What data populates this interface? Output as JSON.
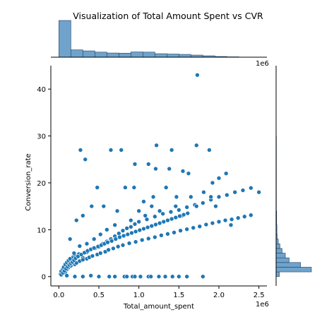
{
  "chart_data": {
    "type": "scatter",
    "title": "Visualization of Total Amount Spent vs CVR",
    "xlabel": "Total_amount_spent",
    "ylabel": "Conversion_rate",
    "x_scale_label": "1e6",
    "marginal_x_scale_label": "1e6",
    "xlim": [
      -0.1,
      2.6
    ],
    "ylim": [
      -2,
      45
    ],
    "x_ticks": [
      "0.0",
      "0.5",
      "1.0",
      "1.5",
      "2.0",
      "2.5"
    ],
    "y_ticks": [
      "0",
      "10",
      "20",
      "30",
      "40"
    ],
    "point_color": "#1f77b4",
    "hist_color": "#6fa3cb",
    "marginal_x_hist": {
      "bin_edges": [
        0.0,
        0.15,
        0.3,
        0.45,
        0.6,
        0.75,
        0.9,
        1.05,
        1.2,
        1.35,
        1.5,
        1.65,
        1.8,
        1.95,
        2.1,
        2.25
      ],
      "counts": [
        210,
        42,
        36,
        29,
        24,
        23,
        30,
        29,
        20,
        18,
        16,
        12,
        8,
        4,
        2
      ]
    },
    "marginal_y_hist": {
      "bin_edges": [
        0,
        1,
        2,
        3,
        4,
        5,
        6,
        7,
        8,
        9,
        10,
        11,
        12,
        13,
        14,
        15,
        16,
        17,
        18,
        19,
        20,
        21,
        22,
        23,
        24,
        25,
        26,
        27,
        28,
        29,
        30
      ],
      "counts": [
        12,
        130,
        90,
        48,
        34,
        22,
        14,
        8,
        4,
        3,
        3,
        2,
        2,
        2,
        1,
        1,
        1,
        1,
        1,
        1,
        1,
        1,
        1,
        1,
        1,
        1,
        1,
        1,
        1,
        1
      ]
    },
    "points": [
      [
        0.02,
        0.5
      ],
      [
        0.03,
        1.1
      ],
      [
        0.05,
        1.6
      ],
      [
        0.06,
        2.0
      ],
      [
        0.08,
        2.6
      ],
      [
        0.1,
        3.0
      ],
      [
        0.12,
        3.4
      ],
      [
        0.14,
        3.8
      ],
      [
        0.18,
        4.2
      ],
      [
        0.2,
        4.5
      ],
      [
        0.25,
        4.8
      ],
      [
        0.3,
        4.0
      ],
      [
        0.35,
        5.2
      ],
      [
        0.4,
        5.7
      ],
      [
        0.45,
        6.0
      ],
      [
        0.5,
        6.3
      ],
      [
        0.55,
        7.0
      ],
      [
        0.6,
        7.5
      ],
      [
        0.65,
        8.0
      ],
      [
        0.7,
        8.6
      ],
      [
        0.75,
        9.2
      ],
      [
        0.8,
        9.8
      ],
      [
        0.85,
        10.3
      ],
      [
        0.9,
        10.6
      ],
      [
        0.95,
        11.2
      ],
      [
        1.0,
        11.7
      ],
      [
        1.1,
        12.2
      ],
      [
        1.2,
        12.8
      ],
      [
        1.3,
        13.4
      ],
      [
        1.4,
        13.8
      ],
      [
        1.5,
        14.2
      ],
      [
        1.6,
        14.8
      ],
      [
        1.7,
        15.3
      ],
      [
        1.8,
        15.7
      ],
      [
        1.9,
        16.4
      ],
      [
        2.0,
        17.0
      ],
      [
        2.1,
        17.4
      ],
      [
        2.2,
        18.0
      ],
      [
        2.3,
        18.4
      ],
      [
        2.4,
        18.9
      ],
      [
        0.08,
        0.8
      ],
      [
        0.1,
        1.5
      ],
      [
        0.12,
        1.9
      ],
      [
        0.15,
        2.3
      ],
      [
        0.2,
        2.6
      ],
      [
        0.22,
        2.9
      ],
      [
        0.26,
        3.3
      ],
      [
        0.3,
        3.6
      ],
      [
        0.35,
        3.8
      ],
      [
        0.38,
        4.1
      ],
      [
        0.42,
        4.4
      ],
      [
        0.48,
        4.7
      ],
      [
        0.52,
        5.0
      ],
      [
        0.58,
        5.3
      ],
      [
        0.62,
        5.7
      ],
      [
        0.68,
        6.0
      ],
      [
        0.74,
        6.4
      ],
      [
        0.8,
        6.7
      ],
      [
        0.88,
        7.1
      ],
      [
        0.96,
        7.4
      ],
      [
        1.04,
        7.8
      ],
      [
        1.12,
        8.1
      ],
      [
        1.2,
        8.4
      ],
      [
        1.28,
        8.8
      ],
      [
        1.36,
        9.1
      ],
      [
        1.44,
        9.4
      ],
      [
        1.52,
        9.8
      ],
      [
        1.6,
        10.1
      ],
      [
        1.68,
        10.4
      ],
      [
        1.76,
        10.7
      ],
      [
        1.84,
        11.1
      ],
      [
        1.92,
        11.4
      ],
      [
        2.0,
        11.7
      ],
      [
        2.08,
        12.0
      ],
      [
        2.16,
        12.2
      ],
      [
        2.24,
        12.5
      ],
      [
        2.32,
        12.8
      ],
      [
        2.4,
        13.1
      ],
      [
        2.5,
        18.0
      ],
      [
        1.73,
        43.0
      ],
      [
        0.27,
        27.0
      ],
      [
        0.33,
        25.0
      ],
      [
        0.65,
        27.0
      ],
      [
        0.78,
        27.0
      ],
      [
        0.95,
        24.0
      ],
      [
        1.12,
        24.0
      ],
      [
        1.22,
        28.0
      ],
      [
        1.41,
        27.0
      ],
      [
        1.72,
        28.0
      ],
      [
        1.88,
        27.0
      ],
      [
        1.21,
        23.0
      ],
      [
        1.38,
        23.0
      ],
      [
        1.55,
        22.5
      ],
      [
        1.62,
        22.0
      ],
      [
        2.09,
        22.0
      ],
      [
        2.0,
        21.0
      ],
      [
        1.92,
        20.0
      ],
      [
        1.81,
        18.0
      ],
      [
        1.9,
        17.0
      ],
      [
        1.65,
        17.0
      ],
      [
        1.47,
        17.0
      ],
      [
        1.34,
        19.0
      ],
      [
        1.18,
        17.0
      ],
      [
        1.06,
        16.0
      ],
      [
        0.94,
        19.0
      ],
      [
        0.83,
        19.0
      ],
      [
        0.73,
        14.0
      ],
      [
        0.56,
        15.0
      ],
      [
        0.48,
        19.0
      ],
      [
        0.41,
        15.0
      ],
      [
        0.3,
        13.0
      ],
      [
        0.22,
        12.0
      ],
      [
        0.14,
        8.0
      ],
      [
        0.19,
        5.0
      ],
      [
        0.26,
        6.5
      ],
      [
        0.35,
        7.0
      ],
      [
        0.44,
        8.0
      ],
      [
        0.52,
        9.0
      ],
      [
        0.6,
        10.0
      ],
      [
        0.7,
        11.0
      ],
      [
        0.9,
        12.0
      ],
      [
        1.0,
        14.0
      ],
      [
        1.08,
        13.0
      ],
      [
        1.16,
        15.0
      ],
      [
        1.26,
        14.0
      ],
      [
        1.46,
        15.0
      ],
      [
        1.54,
        13.0
      ],
      [
        1.72,
        15.0
      ],
      [
        1.96,
        15.0
      ],
      [
        2.15,
        11.0
      ],
      [
        0.4,
        0.2
      ],
      [
        0.63,
        0.0
      ],
      [
        0.82,
        0.0
      ],
      [
        0.92,
        0.0
      ],
      [
        1.02,
        0.0
      ],
      [
        1.12,
        0.0
      ],
      [
        1.25,
        0.0
      ],
      [
        1.42,
        0.0
      ],
      [
        1.6,
        0.0
      ],
      [
        1.8,
        0.0
      ],
      [
        0.1,
        0.2
      ],
      [
        0.2,
        0.0
      ],
      [
        0.3,
        0.0
      ],
      [
        0.5,
        0.0
      ],
      [
        0.7,
        0.0
      ],
      [
        0.85,
        0.0
      ],
      [
        0.95,
        0.0
      ],
      [
        1.15,
        0.0
      ],
      [
        1.33,
        0.0
      ],
      [
        1.5,
        0.0
      ],
      [
        0.03,
        0.4
      ],
      [
        0.05,
        0.8
      ],
      [
        0.07,
        1.2
      ],
      [
        0.09,
        1.7
      ],
      [
        0.11,
        2.1
      ],
      [
        0.13,
        2.5
      ],
      [
        0.15,
        2.8
      ],
      [
        0.17,
        3.1
      ],
      [
        0.19,
        3.5
      ],
      [
        0.21,
        3.9
      ],
      [
        0.24,
        4.3
      ],
      [
        0.28,
        4.7
      ],
      [
        0.32,
        5.1
      ],
      [
        0.36,
        5.5
      ],
      [
        0.4,
        5.8
      ],
      [
        0.44,
        6.1
      ],
      [
        0.49,
        6.4
      ],
      [
        0.53,
        6.7
      ],
      [
        0.57,
        7.0
      ],
      [
        0.61,
        7.3
      ],
      [
        0.66,
        7.6
      ],
      [
        0.71,
        8.0
      ],
      [
        0.76,
        8.4
      ],
      [
        0.81,
        8.7
      ],
      [
        0.86,
        9.0
      ],
      [
        0.91,
        9.3
      ],
      [
        0.96,
        9.6
      ],
      [
        1.01,
        9.9
      ],
      [
        1.06,
        10.2
      ],
      [
        1.11,
        10.5
      ],
      [
        1.16,
        10.8
      ],
      [
        1.21,
        11.1
      ],
      [
        1.26,
        11.4
      ],
      [
        1.31,
        11.7
      ],
      [
        1.36,
        12.0
      ],
      [
        1.41,
        12.3
      ],
      [
        1.46,
        12.6
      ],
      [
        1.51,
        12.9
      ],
      [
        1.56,
        13.2
      ],
      [
        1.61,
        13.5
      ]
    ]
  }
}
